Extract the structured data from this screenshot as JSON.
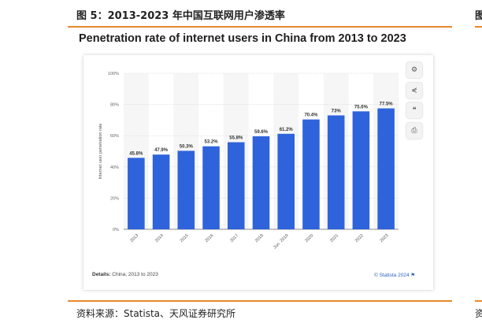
{
  "figure_caption": "图 5：2013-2023 年中国互联网用户渗透率",
  "right_caption_fragment": "图",
  "source_note": "资料来源：Statista、天风证券研究所",
  "right_source_fragment": "资",
  "chart_data": {
    "type": "bar",
    "title": "Penetration rate of internet users in China from 2013 to 2023",
    "categories": [
      "2013",
      "2014",
      "2015",
      "2016",
      "2017",
      "2018",
      "Jun. 2019",
      "2020",
      "2021",
      "2022",
      "2023"
    ],
    "values": [
      45.8,
      47.9,
      50.3,
      53.2,
      55.8,
      59.6,
      61.2,
      70.4,
      73,
      75.6,
      77.5
    ],
    "value_labels": [
      "45.8%",
      "47.9%",
      "50.3%",
      "53.2%",
      "55.8%",
      "59.6%",
      "61.2%",
      "70.4%",
      "73%",
      "75.6%",
      "77.5%"
    ],
    "ylabel": "Internet user penetration rate",
    "xlabel": "",
    "ylim": [
      0,
      100
    ],
    "yticks": [
      "0%",
      "20%",
      "40%",
      "60%",
      "80%",
      "100%"
    ],
    "grid": true,
    "bar_color": "#2f63db",
    "details_label": "Details:",
    "details_text": "China; 2013 to 2023",
    "credit": "© Statista 2024",
    "toolbar_icons": [
      "gear-icon",
      "share-icon",
      "quote-icon",
      "print-icon"
    ]
  },
  "colors": {
    "accent_rule": "#e8892b",
    "bar": "#2f63db",
    "alt_band": "#f6f6f6"
  }
}
